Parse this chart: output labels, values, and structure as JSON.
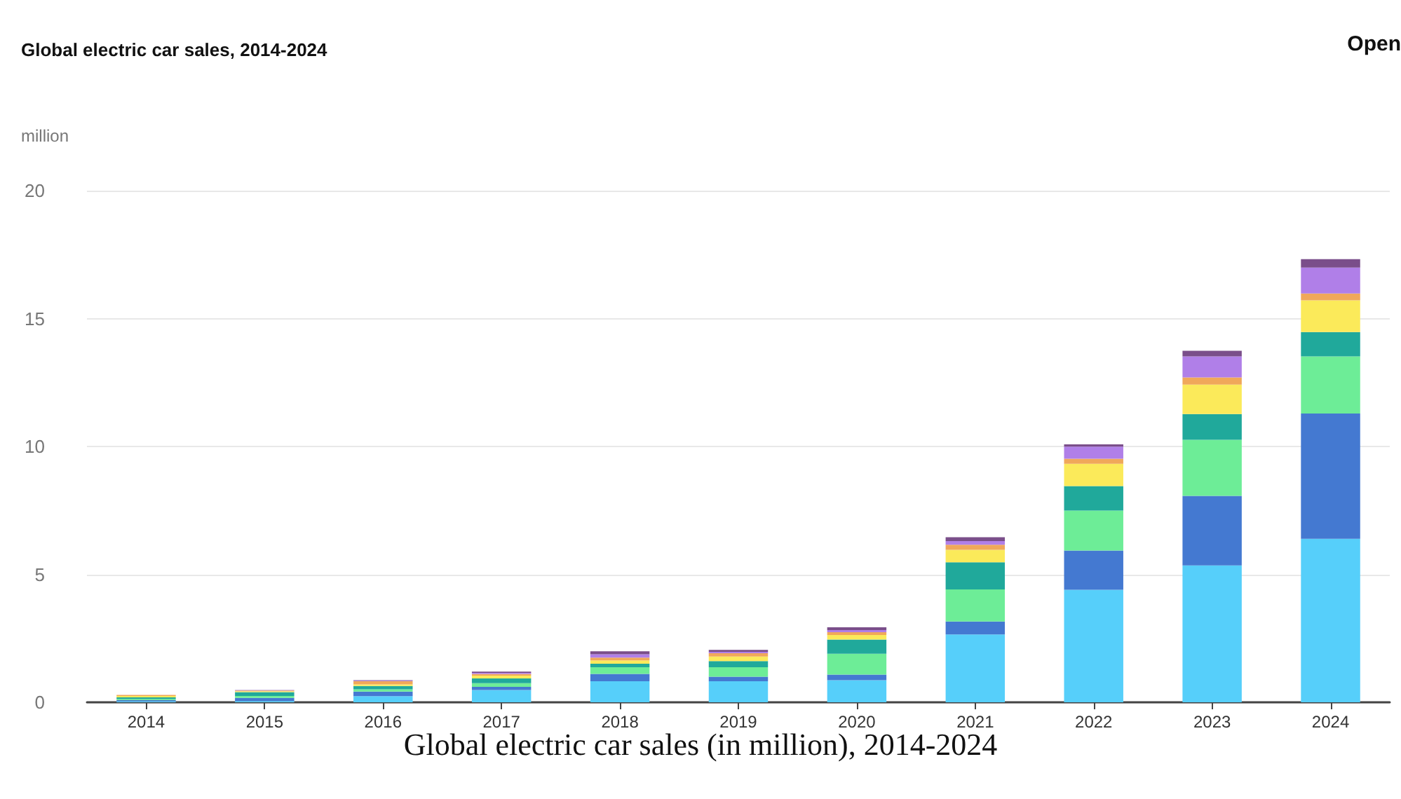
{
  "chart_data": {
    "type": "bar",
    "title": "Global electric car sales, 2014-2024",
    "ylabel": "million",
    "annotations": [
      "Open",
      "Global electric car sales (in million), 2014-2024"
    ],
    "categories": [
      "2014",
      "2015",
      "2016",
      "2017",
      "2018",
      "2019",
      "2020",
      "2021",
      "2022",
      "2023",
      "2024"
    ],
    "stacked": true,
    "ylim": [
      0,
      20
    ],
    "yticks": [
      0,
      5,
      10,
      15,
      20
    ],
    "grid": "y",
    "series": [
      {
        "color": "#56cffa",
        "values": [
          0.04,
          0.05,
          0.24,
          0.48,
          0.82,
          0.82,
          0.86,
          2.65,
          4.4,
          5.35,
          6.39
        ]
      },
      {
        "color": "#4479d1",
        "values": [
          0.04,
          0.12,
          0.18,
          0.12,
          0.29,
          0.18,
          0.22,
          0.51,
          1.53,
          2.72,
          4.9
        ]
      },
      {
        "color": "#6ded97",
        "values": [
          0.05,
          0.08,
          0.09,
          0.15,
          0.26,
          0.37,
          0.82,
          1.25,
          1.56,
          2.19,
          2.23
        ]
      },
      {
        "color": "#20a99b",
        "values": [
          0.06,
          0.15,
          0.13,
          0.18,
          0.14,
          0.24,
          0.55,
          1.06,
          0.96,
          1.01,
          0.95
        ]
      },
      {
        "color": "#fbea5a",
        "values": [
          0.06,
          0.03,
          0.06,
          0.11,
          0.13,
          0.18,
          0.18,
          0.49,
          0.87,
          1.15,
          1.24
        ]
      },
      {
        "color": "#f0a85a",
        "values": [
          0.04,
          0.03,
          0.12,
          0.07,
          0.11,
          0.13,
          0.11,
          0.2,
          0.2,
          0.28,
          0.27
        ]
      },
      {
        "color": "#b07fe8",
        "values": [
          0,
          0.01,
          0.02,
          0.04,
          0.13,
          0.05,
          0.08,
          0.14,
          0.47,
          0.82,
          1.01
        ]
      },
      {
        "color": "#7a4e8a",
        "values": [
          0,
          0.01,
          0.02,
          0.05,
          0.11,
          0.08,
          0.11,
          0.15,
          0.09,
          0.22,
          0.33
        ]
      }
    ]
  }
}
